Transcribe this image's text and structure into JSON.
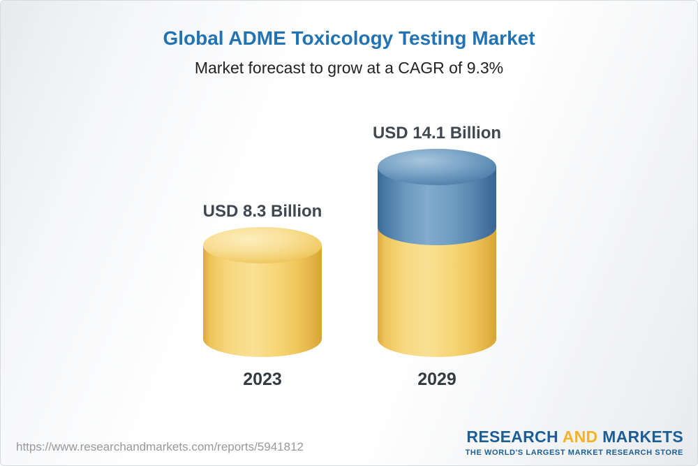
{
  "header": {
    "title": "Global ADME Toxicology Testing Market",
    "subtitle": "Market forecast to grow at a CAGR of 9.3%"
  },
  "chart_data": {
    "type": "bar",
    "title": "Global ADME Toxicology Testing Market",
    "subtitle": "Market forecast to grow at a CAGR of 9.3%",
    "unit": "USD Billion",
    "cagr": "9.3%",
    "categories": [
      "2023",
      "2029"
    ],
    "values": [
      8.3,
      14.1
    ],
    "value_labels": [
      "USD 8.3 Billion",
      "USD 14.1 Billion"
    ],
    "ylim": [
      0,
      15
    ],
    "grid": false,
    "legend": false,
    "bars": [
      {
        "category": "2023",
        "label": "USD 8.3 Billion",
        "segments": [
          {
            "value": 8.3,
            "color": "#f3cf6e"
          }
        ]
      },
      {
        "category": "2029",
        "label": "USD 14.1 Billion",
        "segments": [
          {
            "value": 8.3,
            "color": "#f3cf6e"
          },
          {
            "value": 5.8,
            "color": "#5d8cb5"
          }
        ]
      }
    ]
  },
  "footer": {
    "url": "https://www.researchandmarkets.com/reports/5941812",
    "logo": {
      "research": "RESEARCH",
      "and": "AND",
      "markets": "MARKETS",
      "tagline": "THE WORLD'S LARGEST MARKET RESEARCH STORE"
    }
  }
}
